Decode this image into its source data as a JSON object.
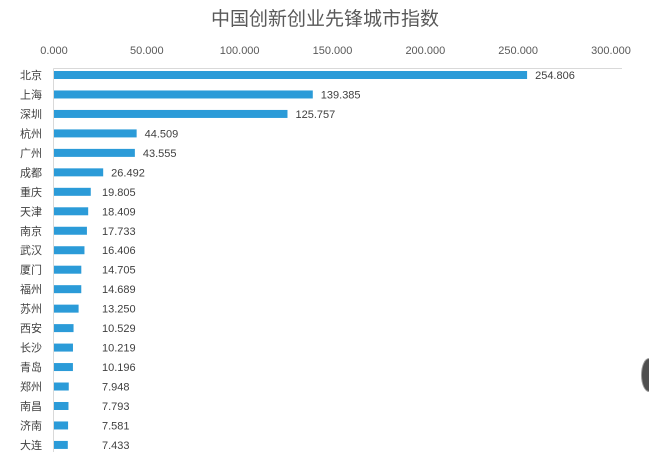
{
  "chart_data": {
    "type": "bar",
    "orientation": "horizontal",
    "title": "中国创新创业先锋城市指数",
    "categories": [
      "北京",
      "上海",
      "深圳",
      "杭州",
      "广州",
      "成都",
      "重庆",
      "天津",
      "南京",
      "武汉",
      "厦门",
      "福州",
      "苏州",
      "西安",
      "长沙",
      "青岛",
      "郑州",
      "南昌",
      "济南",
      "大连"
    ],
    "values": [
      254.806,
      139.385,
      125.757,
      44.509,
      43.555,
      26.492,
      19.805,
      18.409,
      17.733,
      16.406,
      14.705,
      14.689,
      13.25,
      10.529,
      10.219,
      10.196,
      7.948,
      7.793,
      7.581,
      7.433
    ],
    "value_labels": [
      "254.806",
      "139.385",
      "125.757",
      "44.509",
      "43.555",
      "26.492",
      "19.805",
      "18.409",
      "17.733",
      "16.406",
      "14.705",
      "14.689",
      "13.250",
      "10.529",
      "10.219",
      "10.196",
      "7.948",
      "7.793",
      "7.581",
      "7.433"
    ],
    "xtick_labels": [
      "0.000",
      "50.000",
      "100.000",
      "150.000",
      "200.000",
      "250.000",
      "300.000"
    ],
    "xlim": [
      0,
      300
    ],
    "x_axis_position": "top",
    "grid": false,
    "bar_color": "#2B9BD8"
  },
  "colors": {
    "side_nav_button": "#4f4f4f"
  }
}
